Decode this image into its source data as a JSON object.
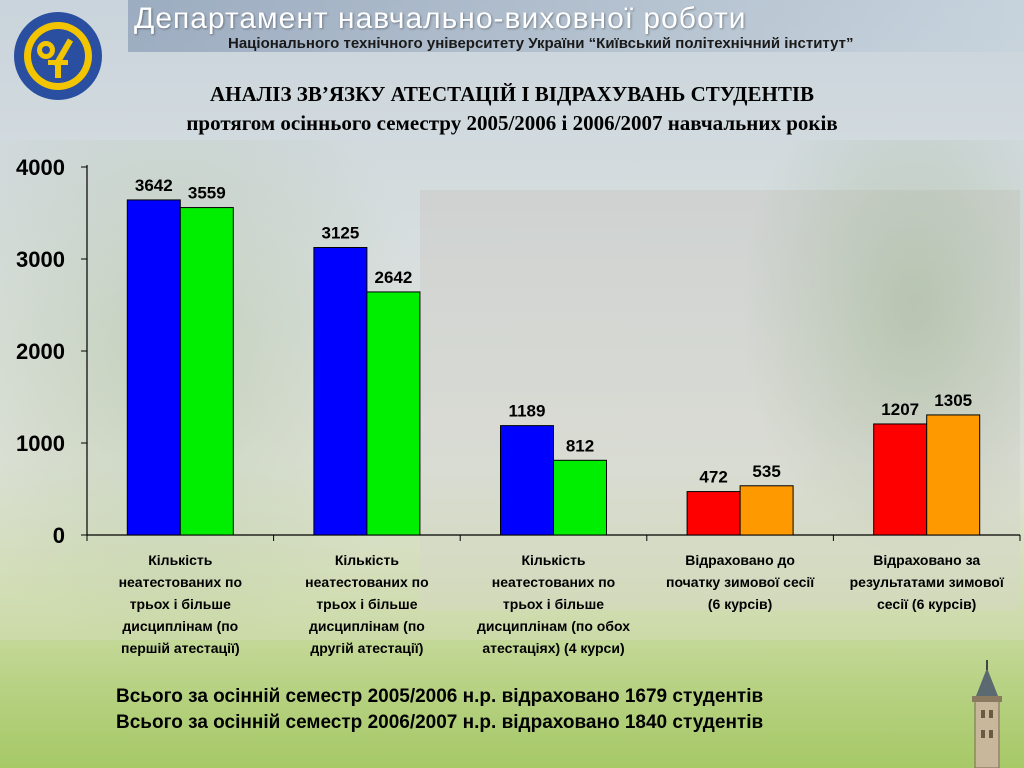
{
  "header": {
    "title": "Департамент навчально-виховної роботи",
    "subtitle": "Національного технічного університету України “Київський політехнічний інститут”"
  },
  "chart_data": {
    "type": "bar",
    "title": "АНАЛІЗ ЗВ’ЯЗКУ АТЕСТАЦІЙ І ВІДРАХУВАНЬ СТУДЕНТІВ",
    "subtitle": "протягом осіннього семестру 2005/2006 і 2006/2007 навчальних років",
    "ylim": [
      0,
      4000
    ],
    "yticks": [
      "0",
      "1000",
      "2000",
      "3000",
      "4000"
    ],
    "grid": false,
    "legend": "none",
    "categories": [
      [
        "Кількість",
        "неатестованих по",
        "трьох і більше",
        "дисциплінам (по",
        "першій атестації)"
      ],
      [
        "Кількість",
        "неатестованих по",
        "трьох і більше",
        "дисциплінам (по",
        "другій атестації)"
      ],
      [
        "Кількість",
        "неатестованих по",
        "трьох і більше",
        "дисциплінам (по обох",
        "атестаціях)     (4 курси)"
      ],
      [
        "Відраховано до",
        "початку зимової сесії",
        "(6 курсів)"
      ],
      [
        "Відраховано за",
        "результатами зимової",
        "сесії     (6 курсів)"
      ]
    ],
    "bars": [
      [
        {
          "value": 3642,
          "label": "3642",
          "color": "#0000ff"
        },
        {
          "value": 3559,
          "label": "3559",
          "color": "#00ee00"
        }
      ],
      [
        {
          "value": 3125,
          "label": "3125",
          "color": "#0000ff"
        },
        {
          "value": 2642,
          "label": "2642",
          "color": "#00ee00"
        }
      ],
      [
        {
          "value": 1189,
          "label": "1189",
          "color": "#0000ff"
        },
        {
          "value": 812,
          "label": "812",
          "color": "#00ee00"
        }
      ],
      [
        {
          "value": 472,
          "label": "472",
          "color": "#ff0000"
        },
        {
          "value": 535,
          "label": "535",
          "color": "#ff9900"
        }
      ],
      [
        {
          "value": 1207,
          "label": "1207",
          "color": "#ff0000"
        },
        {
          "value": 1305,
          "label": "1305",
          "color": "#ff9900"
        }
      ]
    ]
  },
  "footer": {
    "line1": "Всього за осінній семестр 2005/2006 н.р. відраховано 1679 студентів",
    "line2": "Всього за осінній семестр 2006/2007 н.р. відраховано 1840 студентів"
  }
}
